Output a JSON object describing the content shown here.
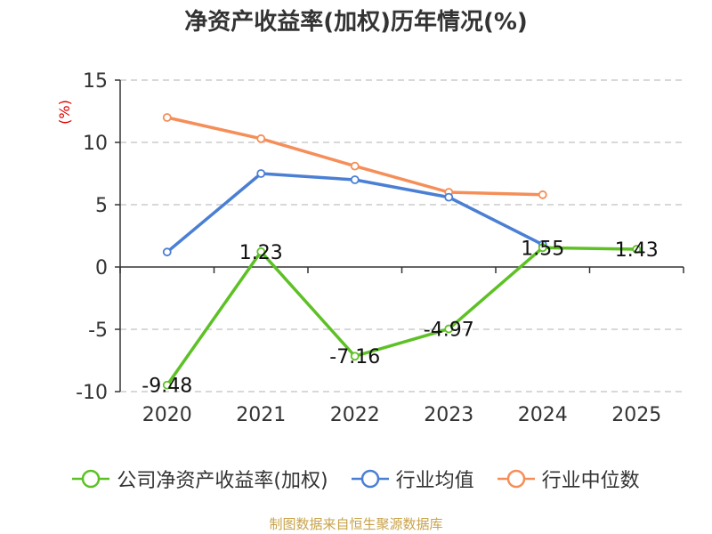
{
  "chart_data": {
    "type": "line",
    "title": "净资产收益率(加权)历年情况(%)",
    "ylabel": "(%)",
    "categories": [
      "2020",
      "2021",
      "2022",
      "2023",
      "2024",
      "2025"
    ],
    "ylim": [
      -10,
      15
    ],
    "yticks": [
      15,
      10,
      5,
      0,
      -5,
      -10
    ],
    "grid": true,
    "legend_position": "bottom",
    "series": [
      {
        "name": "公司净资产收益率(加权)",
        "color": "#5dc125",
        "values": [
          -9.48,
          1.23,
          -7.16,
          -4.97,
          1.55,
          1.43
        ],
        "labels": [
          "-9.48",
          "1.23",
          "-7.16",
          "-4.97",
          "1.55",
          "1.43"
        ]
      },
      {
        "name": "行业均值",
        "color": "#4a7fd4",
        "values": [
          1.2,
          7.5,
          7.0,
          5.6,
          1.8,
          null
        ]
      },
      {
        "name": "行业中位数",
        "color": "#f58e58",
        "values": [
          12.0,
          10.3,
          8.1,
          6.0,
          5.8,
          null
        ]
      }
    ]
  },
  "source": "制图数据来自恒生聚源数据库"
}
